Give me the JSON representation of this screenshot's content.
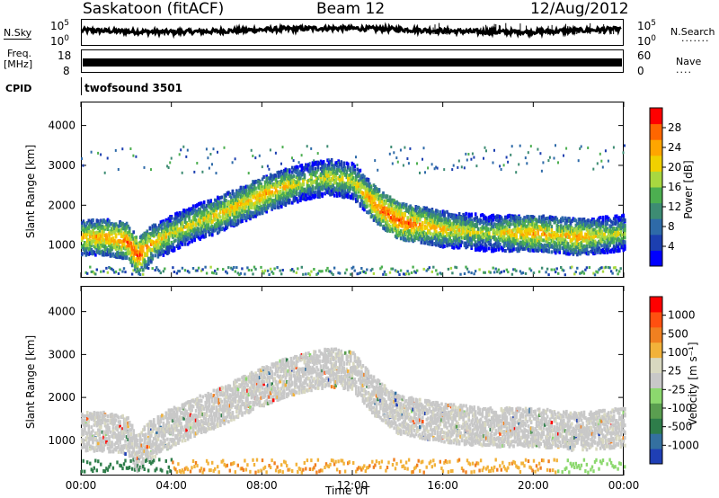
{
  "header": {
    "radar": "Saskatoon (fitACF)",
    "beam": "Beam 12",
    "date": "12/Aug/2012"
  },
  "side_labels": {
    "nsky": "N.Sky",
    "freq_line1": "Freq.",
    "freq_line2": "[MHz]",
    "cpid": "CPID",
    "nsearch": "N.Search",
    "nave": "Nave"
  },
  "noise_axis": {
    "left_top": "10^5",
    "left_bottom": "10^0",
    "right_top": "10^5",
    "right_bottom": "10^0"
  },
  "freq_axis": {
    "left_top": "18",
    "left_bottom": "8",
    "right_top": "60",
    "right_bottom": "0"
  },
  "cpid_text": "twofsound 3501",
  "colors": {
    "power_scale": [
      "#0000ff",
      "#1c3fb0",
      "#2e6aa8",
      "#3d8c73",
      "#4caf50",
      "#a8d840",
      "#f0d000",
      "#ffa500",
      "#ff6600",
      "#ff0000"
    ],
    "velocity_scale": [
      "#1f3fb5",
      "#3470a0",
      "#2e7d4a",
      "#5a9e50",
      "#8cd86e",
      "#c8c8c8",
      "#d8d8c0",
      "#f2b23a",
      "#f08020",
      "#ff5010",
      "#ff0000"
    ]
  },
  "chart_data": [
    {
      "type": "heatmap",
      "title": "Power",
      "xlabel": "Time UT",
      "ylabel": "Slant Range [km]",
      "xlim": [
        "00:00",
        "24:00"
      ],
      "ylim": [
        180,
        4600
      ],
      "x_ticks": [
        "00:00",
        "04:00",
        "08:00",
        "12:00",
        "16:00",
        "20:00",
        "00:00"
      ],
      "y_ticks": [
        1000,
        2000,
        3000,
        4000
      ],
      "colorbar": {
        "label": "Power [dB]",
        "ticks": [
          "4",
          "8",
          "12",
          "16",
          "20",
          "24",
          "28"
        ],
        "range": [
          0,
          30
        ]
      },
      "scatter_band": {
        "hours": [
          0,
          1,
          2,
          2.5,
          3,
          4,
          5,
          6,
          7,
          8,
          9,
          10,
          11,
          12,
          13,
          14,
          15,
          16,
          17,
          18,
          19,
          20,
          21,
          22,
          23,
          24
        ],
        "range_km": [
          1200,
          1200,
          1100,
          700,
          1000,
          1300,
          1550,
          1750,
          2000,
          2250,
          2450,
          2600,
          2700,
          2600,
          2000,
          1600,
          1500,
          1400,
          1350,
          1300,
          1300,
          1300,
          1250,
          1200,
          1250,
          1300
        ],
        "peak_power_db": [
          24,
          26,
          28,
          30,
          26,
          22,
          22,
          24,
          24,
          26,
          24,
          20,
          22,
          22,
          28,
          30,
          26,
          24,
          22,
          20,
          24,
          26,
          24,
          26,
          22,
          20
        ]
      }
    },
    {
      "type": "heatmap",
      "title": "Velocity",
      "xlabel": "Time UT",
      "ylabel": "Slant Range [km]",
      "xlim": [
        "00:00",
        "24:00"
      ],
      "ylim": [
        180,
        4600
      ],
      "x_ticks": [
        "00:00",
        "04:00",
        "08:00",
        "12:00",
        "16:00",
        "20:00",
        "00:00"
      ],
      "y_ticks": [
        1000,
        2000,
        3000,
        4000
      ],
      "colorbar": {
        "label": "Velocity [m s⁻¹]",
        "ticks": [
          "1000",
          "500",
          "100",
          "25",
          "-25",
          "-100",
          "-500",
          "-1000"
        ],
        "range": [
          -1000,
          1000
        ]
      }
    }
  ]
}
